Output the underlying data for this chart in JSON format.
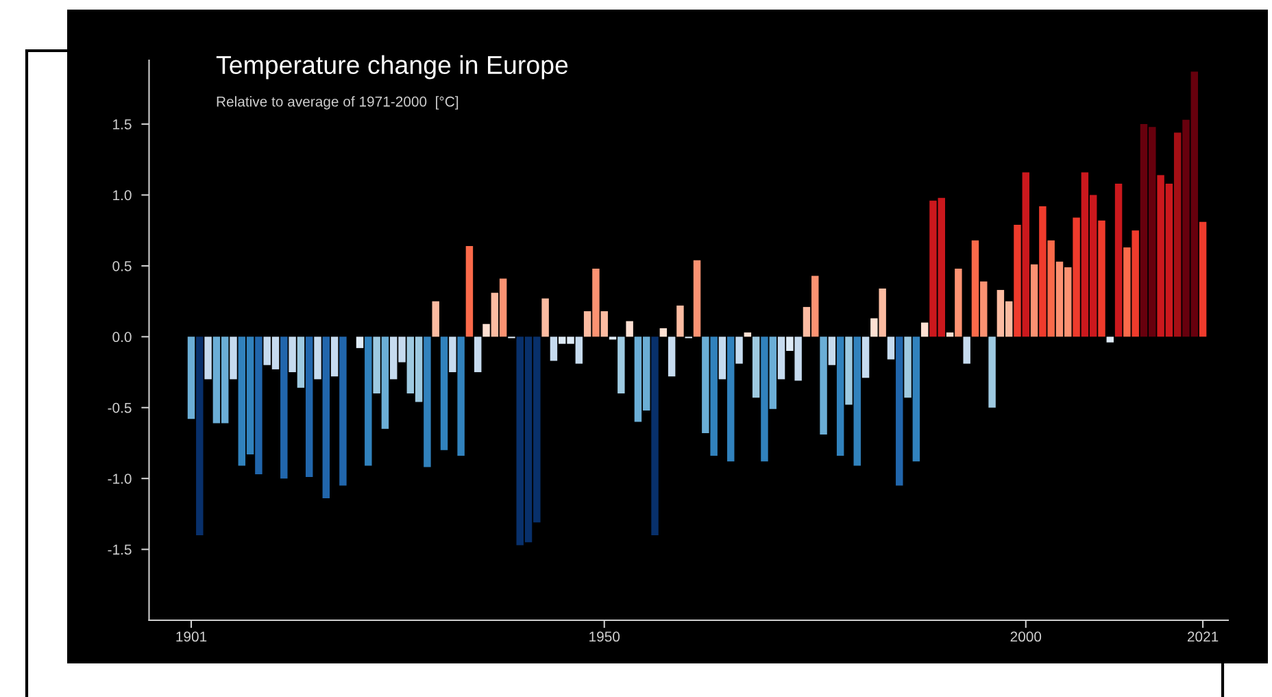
{
  "chart_data": {
    "type": "bar",
    "title": "Temperature change in Europe",
    "subtitle": "Relative to average of 1971-2000  [°C]",
    "x": [
      1901,
      1902,
      1903,
      1904,
      1905,
      1906,
      1907,
      1908,
      1909,
      1910,
      1911,
      1912,
      1913,
      1914,
      1915,
      1916,
      1917,
      1918,
      1919,
      1920,
      1921,
      1922,
      1923,
      1924,
      1925,
      1926,
      1927,
      1928,
      1929,
      1930,
      1931,
      1932,
      1933,
      1934,
      1935,
      1936,
      1937,
      1938,
      1939,
      1940,
      1941,
      1942,
      1943,
      1944,
      1945,
      1946,
      1947,
      1948,
      1949,
      1950,
      1951,
      1952,
      1953,
      1954,
      1955,
      1956,
      1957,
      1958,
      1959,
      1960,
      1961,
      1962,
      1963,
      1964,
      1965,
      1966,
      1967,
      1968,
      1969,
      1970,
      1971,
      1972,
      1973,
      1974,
      1975,
      1976,
      1977,
      1978,
      1979,
      1980,
      1981,
      1982,
      1983,
      1984,
      1985,
      1986,
      1987,
      1988,
      1989,
      1990,
      1991,
      1992,
      1993,
      1994,
      1995,
      1996,
      1997,
      1998,
      1999,
      2000,
      2001,
      2002,
      2003,
      2004,
      2005,
      2006,
      2007,
      2008,
      2009,
      2010,
      2011,
      2012,
      2013,
      2014,
      2015,
      2016,
      2017,
      2018,
      2019,
      2020,
      2021
    ],
    "values": [
      -0.58,
      -1.4,
      -0.3,
      -0.61,
      -0.61,
      -0.3,
      -0.91,
      -0.83,
      -0.97,
      -0.2,
      -0.23,
      -1.0,
      -0.25,
      -0.36,
      -0.99,
      -0.3,
      -1.14,
      -0.28,
      -1.05,
      0.0,
      -0.08,
      -0.91,
      -0.4,
      -0.65,
      -0.3,
      -0.18,
      -0.4,
      -0.46,
      -0.92,
      0.25,
      -0.8,
      -0.25,
      -0.84,
      0.64,
      -0.25,
      0.09,
      0.31,
      0.41,
      -0.01,
      -1.47,
      -1.45,
      -1.31,
      0.27,
      -0.17,
      -0.05,
      -0.05,
      -0.19,
      0.18,
      0.48,
      0.18,
      -0.02,
      -0.4,
      0.11,
      -0.6,
      -0.52,
      -1.4,
      0.06,
      -0.28,
      0.22,
      -0.01,
      0.54,
      -0.68,
      -0.84,
      -0.3,
      -0.88,
      -0.19,
      0.03,
      -0.43,
      -0.88,
      -0.51,
      -0.3,
      -0.1,
      -0.31,
      0.21,
      0.43,
      -0.69,
      -0.2,
      -0.84,
      -0.48,
      -0.91,
      -0.29,
      0.13,
      0.34,
      -0.16,
      -1.05,
      -0.43,
      -0.88,
      0.1,
      0.96,
      0.98,
      0.03,
      0.48,
      -0.19,
      0.68,
      0.39,
      -0.5,
      0.33,
      0.25,
      0.79,
      1.16,
      0.51,
      0.92,
      0.68,
      0.53,
      0.49,
      0.84,
      1.16,
      1.0,
      0.82,
      -0.04,
      1.08,
      0.63,
      0.75,
      1.5,
      1.48,
      1.14,
      1.08,
      1.44,
      1.53,
      1.87,
      0.81
    ],
    "colors": [
      "#6baed6",
      "#08306b",
      "#c6dbef",
      "#6baed6",
      "#6baed6",
      "#c6dbef",
      "#3182bd",
      "#3182bd",
      "#2166ac",
      "#c6dbef",
      "#c6dbef",
      "#2166ac",
      "#c6dbef",
      "#9ecae1",
      "#2166ac",
      "#c6dbef",
      "#2166ac",
      "#c6dbef",
      "#2166ac",
      "#deebf7",
      "#deebf7",
      "#3182bd",
      "#9ecae1",
      "#6baed6",
      "#c6dbef",
      "#c6dbef",
      "#9ecae1",
      "#9ecae1",
      "#3182bd",
      "#fcbba1",
      "#3182bd",
      "#c6dbef",
      "#3182bd",
      "#fb6a4a",
      "#c6dbef",
      "#fee0d2",
      "#fcbba1",
      "#fc9272",
      "#deebf7",
      "#08306b",
      "#08306b",
      "#08306b",
      "#fcbba1",
      "#c6dbef",
      "#deebf7",
      "#deebf7",
      "#c6dbef",
      "#fcbba1",
      "#fc9272",
      "#fcbba1",
      "#deebf7",
      "#9ecae1",
      "#fee0d2",
      "#6baed6",
      "#6baed6",
      "#08306b",
      "#fee0d2",
      "#c6dbef",
      "#fcbba1",
      "#deebf7",
      "#fc9272",
      "#6baed6",
      "#3182bd",
      "#c6dbef",
      "#3182bd",
      "#c6dbef",
      "#fee0d2",
      "#9ecae1",
      "#3182bd",
      "#6baed6",
      "#c6dbef",
      "#deebf7",
      "#c6dbef",
      "#fcbba1",
      "#fc9272",
      "#6baed6",
      "#c6dbef",
      "#3182bd",
      "#9ecae1",
      "#3182bd",
      "#c6dbef",
      "#fee0d2",
      "#fcbba1",
      "#c6dbef",
      "#2166ac",
      "#9ecae1",
      "#3182bd",
      "#fee0d2",
      "#cb181d",
      "#cb181d",
      "#fee0d2",
      "#fc9272",
      "#c6dbef",
      "#fb6a4a",
      "#fc9272",
      "#9ecae1",
      "#fcbba1",
      "#fcbba1",
      "#ef3b2c",
      "#cb181d",
      "#fc9272",
      "#ef3b2c",
      "#fb6a4a",
      "#fc9272",
      "#fc9272",
      "#ef3b2c",
      "#cb181d",
      "#cb181d",
      "#ef3b2c",
      "#deebf7",
      "#cb181d",
      "#fb6a4a",
      "#ef3b2c",
      "#67000d",
      "#67000d",
      "#cb181d",
      "#cb181d",
      "#a50f15",
      "#67000d",
      "#67000d",
      "#ef3b2c"
    ],
    "xlim": [
      1896,
      2024
    ],
    "xticks": [
      1901,
      1950,
      2000,
      2021
    ],
    "ylim": [
      -2.0,
      1.95
    ],
    "yticks": [
      {
        "value": -1.5,
        "label": "-1.5"
      },
      {
        "value": -1,
        "label": "-1.0"
      },
      {
        "value": -0.5,
        "label": "-0.5"
      },
      {
        "value": 0,
        "label": "0.0"
      },
      {
        "value": 0.5,
        "label": "0.5"
      },
      {
        "value": 1,
        "label": "1.0"
      },
      {
        "value": 1.5,
        "label": "1.5"
      }
    ],
    "grid": false,
    "legend": false
  }
}
